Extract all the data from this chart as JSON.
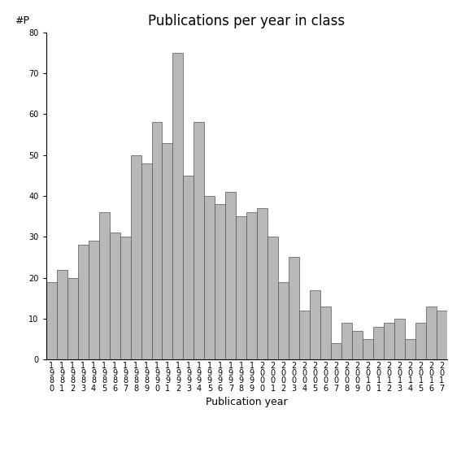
{
  "title": "Publications per year in class",
  "xlabel": "Publication year",
  "ylabel": "#P",
  "bar_color": "#b8b8b8",
  "bar_edge_color": "#555555",
  "background_color": "#ffffff",
  "ylim": [
    0,
    80
  ],
  "yticks": [
    0,
    10,
    20,
    30,
    40,
    50,
    60,
    70,
    80
  ],
  "categories": [
    "1980",
    "1981",
    "1982",
    "1983",
    "1984",
    "1985",
    "1986",
    "1987",
    "1988",
    "1989",
    "1990",
    "1991",
    "1992",
    "1993",
    "1994",
    "1995",
    "1996",
    "1997",
    "1998",
    "1999",
    "2000",
    "2001",
    "2002",
    "2003",
    "2004",
    "2005",
    "2006",
    "2007",
    "2008",
    "2009",
    "2010",
    "2011",
    "2012",
    "2013",
    "2014",
    "2015",
    "2016",
    "2017"
  ],
  "values": [
    19,
    22,
    20,
    28,
    29,
    36,
    31,
    30,
    50,
    48,
    58,
    53,
    75,
    45,
    58,
    40,
    38,
    41,
    35,
    36,
    37,
    30,
    19,
    25,
    12,
    17,
    13,
    4,
    9,
    7,
    5,
    8,
    9,
    10,
    5,
    9,
    13,
    12
  ],
  "title_fontsize": 12,
  "axis_fontsize": 9,
  "tick_fontsize": 7,
  "ylabel_fontsize": 9
}
